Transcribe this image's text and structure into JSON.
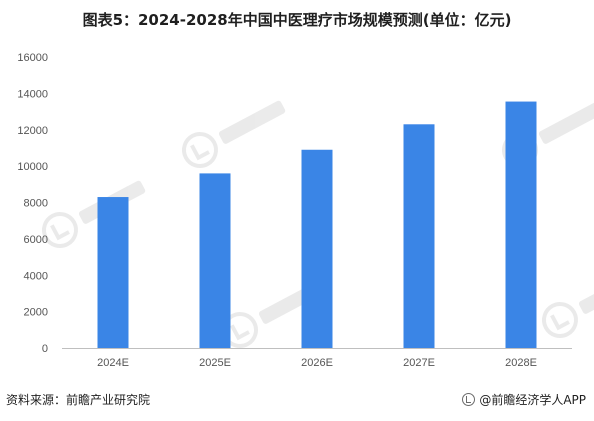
{
  "title": "图表5：2024-2028年中国中医理疗市场规模预测(单位：亿元)",
  "footer": {
    "source": "资料来源：前瞻产业研究院",
    "brand": "@前瞻经济学人APP"
  },
  "colors": {
    "bar": "#3a85e6",
    "axis": "#bfbfbf"
  },
  "chart_data": {
    "type": "bar",
    "categories": [
      "2024E",
      "2025E",
      "2026E",
      "2027E",
      "2028E"
    ],
    "values": [
      8300,
      9600,
      10900,
      12300,
      13550
    ],
    "title": "图表5：2024-2028年中国中医理疗市场规模预测(单位：亿元)",
    "xlabel": "",
    "ylabel": "",
    "ylim": [
      0,
      16000
    ],
    "yticks": [
      0,
      2000,
      4000,
      6000,
      8000,
      10000,
      12000,
      14000,
      16000
    ],
    "grid": false,
    "legend": "none"
  }
}
